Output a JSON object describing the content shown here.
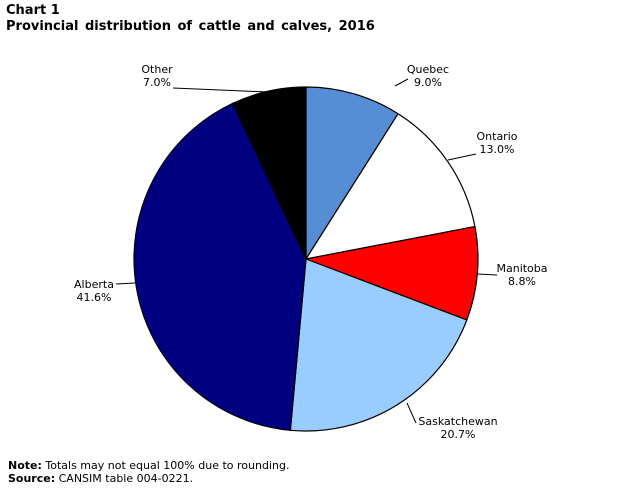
{
  "header": {
    "chart_number": "Chart 1",
    "title": "Provincial distribution of cattle and calves, 2016"
  },
  "chart_data": {
    "type": "pie",
    "title": "Provincial distribution of cattle and calves, 2016",
    "start": "12 o'clock",
    "direction": "clockwise",
    "slices": [
      {
        "label": "Quebec",
        "value": 9.0,
        "display": "9.0%",
        "color": "#558ed5"
      },
      {
        "label": "Ontario",
        "value": 13.0,
        "display": "13.0%",
        "color": "#ffffff"
      },
      {
        "label": "Manitoba",
        "value": 8.8,
        "display": "8.8%",
        "color": "#ff0000"
      },
      {
        "label": "Saskatchewan",
        "value": 20.7,
        "display": "20.7%",
        "color": "#99ccff"
      },
      {
        "label": "Alberta",
        "value": 41.6,
        "display": "41.6%",
        "color": "#000080"
      },
      {
        "label": "Other",
        "value": 7.0,
        "display": "7.0%",
        "color": "#000000"
      }
    ]
  },
  "notes": {
    "note_label": "Note:",
    "note_text": "Totals may not equal 100% due to rounding.",
    "source_label": "Source:",
    "source_text": "CANSIM table 004-0221."
  }
}
